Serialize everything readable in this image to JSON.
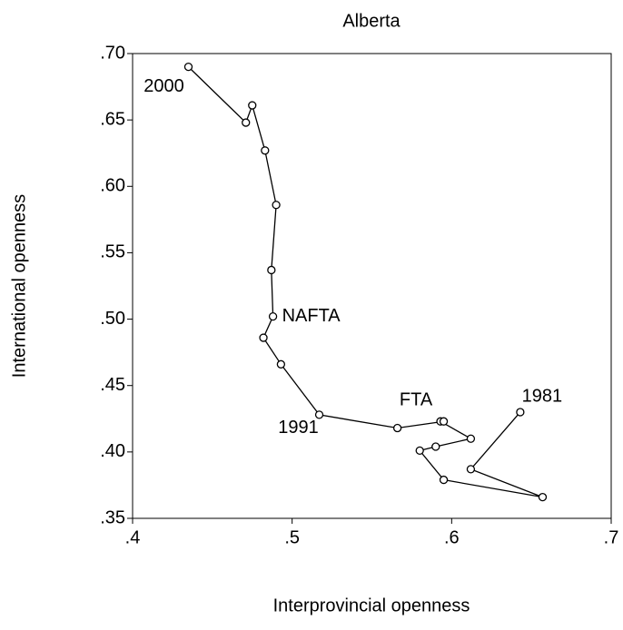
{
  "chart_data": {
    "type": "connected_scatter",
    "title": "Alberta",
    "xlabel": "Interprovincial openness",
    "ylabel": "International openness",
    "x": [
      0.643,
      0.612,
      0.657,
      0.595,
      0.58,
      0.59,
      0.612,
      0.593,
      0.595,
      0.566,
      0.517,
      0.493,
      0.482,
      0.488,
      0.487,
      0.49,
      0.483,
      0.475,
      0.471,
      0.435
    ],
    "y": [
      0.43,
      0.387,
      0.366,
      0.379,
      0.401,
      0.404,
      0.41,
      0.423,
      0.423,
      0.418,
      0.428,
      0.466,
      0.486,
      0.502,
      0.537,
      0.586,
      0.627,
      0.661,
      0.648,
      0.69
    ],
    "point_labels": [
      "1981",
      null,
      null,
      null,
      null,
      null,
      null,
      "FTA",
      null,
      null,
      "1991",
      null,
      null,
      "NAFTA",
      null,
      null,
      null,
      null,
      null,
      "2000"
    ],
    "color": "#000000",
    "xlim": [
      0.4,
      0.7
    ],
    "xticks": [
      {
        "value": 0.4,
        "label": ".4"
      },
      {
        "value": 0.5,
        "label": ".5"
      },
      {
        "value": 0.6,
        "label": ".6"
      },
      {
        "value": 0.7,
        "label": ".7"
      }
    ],
    "ylim": [
      0.35,
      0.7
    ],
    "yticks": [
      {
        "value": 0.35,
        "label": ".35"
      },
      {
        "value": 0.4,
        "label": ".40"
      },
      {
        "value": 0.45,
        "label": ".45"
      },
      {
        "value": 0.5,
        "label": ".50"
      },
      {
        "value": 0.55,
        "label": ".55"
      },
      {
        "value": 0.6,
        "label": ".60"
      },
      {
        "value": 0.65,
        "label": ".65"
      },
      {
        "value": 0.7,
        "label": ".70"
      }
    ],
    "grid": false
  }
}
